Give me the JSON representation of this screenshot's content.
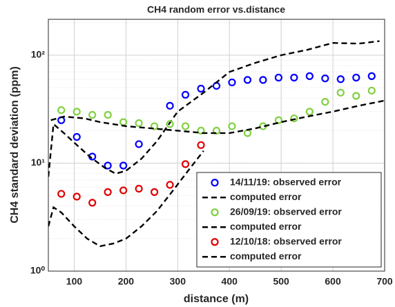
{
  "chart_data": {
    "type": "line",
    "title": "CH4 random error vs.distance",
    "x_label": "distance (m)",
    "y_label": "CH4 standard deviation (ppm)",
    "xlim": [
      50,
      700
    ],
    "xticks": [
      100,
      200,
      300,
      400,
      500,
      600,
      700
    ],
    "ylim": [
      1,
      215
    ],
    "yticks": [
      {
        "value": 1,
        "label": "10⁰"
      },
      {
        "value": 10,
        "label": "10¹"
      },
      {
        "value": 100,
        "label": "10²"
      }
    ],
    "y_scale": "log",
    "grid": true,
    "minor_grid": true,
    "legend_position": "lower right",
    "series": [
      {
        "name": "14/11/19: observed error",
        "color": "#0000ff",
        "style": "marker",
        "x": [
          75,
          105,
          135,
          165,
          195,
          225,
          285,
          315,
          345,
          375,
          405,
          435,
          465,
          495,
          525,
          555,
          585,
          615,
          645,
          675
        ],
        "values": [
          25,
          17.5,
          11.5,
          9.5,
          9.5,
          15,
          34,
          43,
          49,
          52,
          56,
          59,
          59,
          62,
          62,
          64,
          61,
          60,
          62,
          64
        ]
      },
      {
        "name": "computed error",
        "color": "#000000",
        "style": "dashed",
        "x": [
          50,
          60,
          80,
          100,
          130,
          160,
          180,
          200,
          230,
          260,
          300,
          350,
          400,
          450,
          500,
          550,
          600,
          650,
          690
        ],
        "values": [
          7.5,
          23,
          19,
          15.5,
          11.5,
          9,
          8,
          8.5,
          11,
          16,
          30,
          45,
          70,
          85,
          100,
          112,
          130,
          128,
          135
        ]
      },
      {
        "name": "26/09/19: observed error",
        "color": "#80d040",
        "style": "marker",
        "x": [
          75,
          105,
          135,
          165,
          195,
          225,
          255,
          285,
          315,
          345,
          375,
          405,
          435,
          465,
          495,
          525,
          555,
          585,
          615,
          645,
          675
        ],
        "values": [
          31,
          30,
          28,
          28,
          24,
          23.5,
          22,
          23,
          22,
          20,
          20,
          22,
          19,
          22,
          25,
          26,
          30,
          37,
          45,
          42,
          47
        ]
      },
      {
        "name": "computed error",
        "color": "#000000",
        "style": "dashed",
        "x": [
          55,
          80,
          120,
          150,
          200,
          250,
          300,
          350,
          400,
          450,
          500,
          550,
          600,
          650,
          700
        ],
        "values": [
          25,
          27,
          26,
          24,
          22,
          21,
          20,
          19,
          19,
          21,
          24,
          27,
          30,
          34,
          38
        ]
      },
      {
        "name": "12/10/18: observed error",
        "color": "#e00000",
        "style": "marker",
        "x": [
          75,
          105,
          135,
          165,
          195,
          225,
          255,
          285,
          315,
          345
        ],
        "values": [
          5.2,
          4.9,
          4.3,
          5.4,
          5.6,
          5.8,
          5.4,
          6.3,
          9.8,
          14.7
        ]
      },
      {
        "name": "computed error",
        "color": "#000000",
        "style": "dashed",
        "x": [
          50,
          60,
          75,
          100,
          125,
          150,
          175,
          200,
          230,
          260,
          290,
          320,
          350
        ],
        "values": [
          2.6,
          3.9,
          3.5,
          2.6,
          2.0,
          1.7,
          1.8,
          2.0,
          2.6,
          3.6,
          5.5,
          8.5,
          13
        ]
      }
    ]
  }
}
